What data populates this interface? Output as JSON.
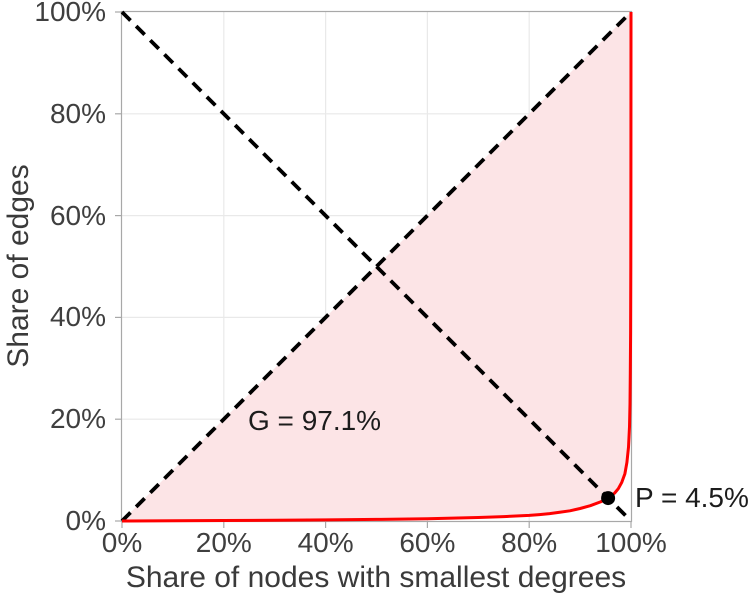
{
  "chart_data": {
    "type": "line",
    "title": "",
    "xlabel": "Share of nodes with smallest degrees",
    "ylabel": "Share of edges",
    "xlim": [
      0,
      100
    ],
    "ylim": [
      0,
      100
    ],
    "grid": true,
    "legend": "none",
    "x_ticks": [
      {
        "value": 0,
        "label": "0%"
      },
      {
        "value": 20,
        "label": "20%"
      },
      {
        "value": 40,
        "label": "40%"
      },
      {
        "value": 60,
        "label": "60%"
      },
      {
        "value": 80,
        "label": "80%"
      },
      {
        "value": 100,
        "label": "100%"
      }
    ],
    "y_ticks": [
      {
        "value": 0,
        "label": "0%"
      },
      {
        "value": 20,
        "label": "20%"
      },
      {
        "value": 40,
        "label": "40%"
      },
      {
        "value": 60,
        "label": "60%"
      },
      {
        "value": 80,
        "label": "80%"
      },
      {
        "value": 100,
        "label": "100%"
      }
    ],
    "series": [
      {
        "name": "lorenz-curve",
        "color": "#ff0000",
        "style": "solid",
        "width": 3,
        "points": [
          [
            0,
            0
          ],
          [
            10,
            0.04
          ],
          [
            20,
            0.09
          ],
          [
            30,
            0.15
          ],
          [
            40,
            0.22
          ],
          [
            50,
            0.32
          ],
          [
            60,
            0.46
          ],
          [
            65,
            0.56
          ],
          [
            70,
            0.68
          ],
          [
            75,
            0.86
          ],
          [
            80,
            1.1
          ],
          [
            82,
            1.25
          ],
          [
            84,
            1.45
          ],
          [
            86,
            1.7
          ],
          [
            88,
            2.0
          ],
          [
            90,
            2.45
          ],
          [
            92,
            3.0
          ],
          [
            94,
            3.75
          ],
          [
            95,
            4.2
          ],
          [
            95.5,
            4.5
          ],
          [
            96,
            4.85
          ],
          [
            96.8,
            5.5
          ],
          [
            97.5,
            6.35
          ],
          [
            98.2,
            7.6
          ],
          [
            98.8,
            9.3
          ],
          [
            99.2,
            11.5
          ],
          [
            99.5,
            14.5
          ],
          [
            99.7,
            18.5
          ],
          [
            99.8,
            23
          ],
          [
            99.87,
            29
          ],
          [
            99.92,
            37
          ],
          [
            99.96,
            50
          ],
          [
            99.985,
            65
          ],
          [
            100,
            100
          ]
        ]
      },
      {
        "name": "equality-diagonal",
        "color": "#000000",
        "style": "dashed",
        "width": 3.8,
        "points": [
          [
            0,
            0
          ],
          [
            100,
            100
          ]
        ]
      },
      {
        "name": "anti-diagonal",
        "color": "#000000",
        "style": "dashed",
        "width": 3.8,
        "points": [
          [
            0,
            100
          ],
          [
            100,
            0
          ]
        ]
      }
    ],
    "gini_area": {
      "fill_color": "#fce4e6",
      "bounded_by": [
        "equality-diagonal",
        "lorenz-curve"
      ]
    },
    "marker": {
      "x": 95.5,
      "y": 4.5,
      "color": "#000000",
      "shape": "filled-circle",
      "radius": 7
    },
    "annotations": [
      {
        "text": "G = 97.1%",
        "x": 24.8,
        "y": 22.4
      },
      {
        "text": "P = 4.5%",
        "x": 100.7,
        "y": 7.3
      }
    ],
    "colors": {
      "grid": "#e9e9e9",
      "axis": "#a8a8a8",
      "tick_text": "#3f3f3f",
      "label_text": "#3a3a3a",
      "annotation_text": "#1c1c1c",
      "background": "#ffffff"
    }
  }
}
